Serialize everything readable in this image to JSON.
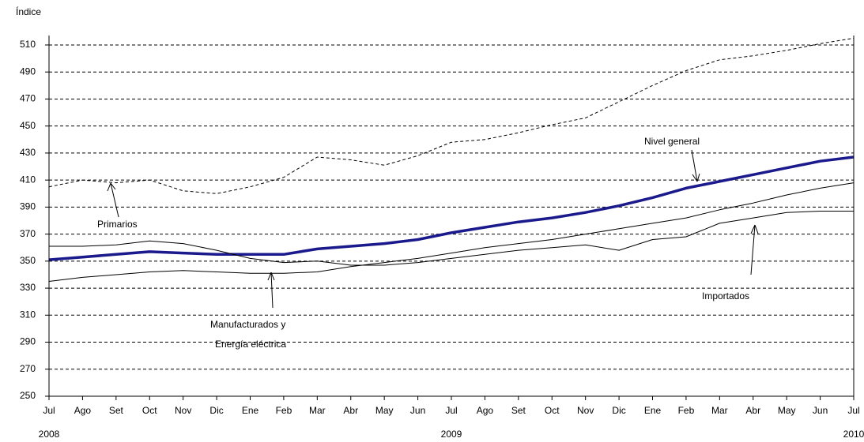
{
  "chart_data": {
    "type": "line",
    "y_label": "Índice",
    "categories": [
      "Jul",
      "Ago",
      "Set",
      "Oct",
      "Nov",
      "Dic",
      "Ene",
      "Feb",
      "Mar",
      "Abr",
      "May",
      "Jun",
      "Jul",
      "Ago",
      "Set",
      "Oct",
      "Nov",
      "Dic",
      "Ene",
      "Feb",
      "Mar",
      "Abr",
      "May",
      "Jun",
      "Jul"
    ],
    "years": [
      "2008",
      null,
      null,
      null,
      null,
      null,
      null,
      null,
      null,
      null,
      null,
      null,
      "2009",
      null,
      null,
      null,
      null,
      null,
      null,
      null,
      null,
      null,
      null,
      null,
      "2010"
    ],
    "ylim": [
      250,
      517
    ],
    "yticks": [
      250,
      270,
      290,
      310,
      330,
      350,
      370,
      390,
      410,
      430,
      450,
      470,
      490,
      510
    ],
    "grid": true,
    "annotations": [
      "Primarios",
      "Nivel general",
      "Manufacturados y",
      "Energía eléctrica",
      "Importados"
    ],
    "series": [
      {
        "name": "Nivel general",
        "color": "#1a1a8c",
        "style": "thick",
        "values": [
          351,
          353,
          355,
          357,
          356,
          355,
          355,
          355,
          359,
          361,
          363,
          366,
          371,
          375,
          379,
          382,
          386,
          391,
          397,
          404,
          409,
          414,
          419,
          424,
          427
        ]
      },
      {
        "name": "Primarios",
        "color": "#000000",
        "style": "dashed",
        "values": [
          405,
          410,
          408,
          410,
          402,
          400,
          405,
          412,
          427,
          425,
          421,
          428,
          438,
          440,
          445,
          451,
          456,
          468,
          480,
          491,
          499,
          502,
          506,
          511,
          515
        ]
      },
      {
        "name": "Manufacturados y Energía eléctrica",
        "color": "#000000",
        "style": "solid",
        "values": [
          335,
          338,
          340,
          342,
          343,
          342,
          341,
          341,
          342,
          346,
          349,
          352,
          356,
          360,
          363,
          366,
          370,
          374,
          378,
          382,
          388,
          393,
          399,
          404,
          408
        ]
      },
      {
        "name": "Importados",
        "color": "#000000",
        "style": "solid",
        "values": [
          361,
          361,
          362,
          365,
          363,
          358,
          352,
          349,
          350,
          347,
          347,
          349,
          352,
          355,
          358,
          360,
          362,
          358,
          366,
          368,
          378,
          382,
          386,
          387,
          387
        ]
      }
    ]
  }
}
